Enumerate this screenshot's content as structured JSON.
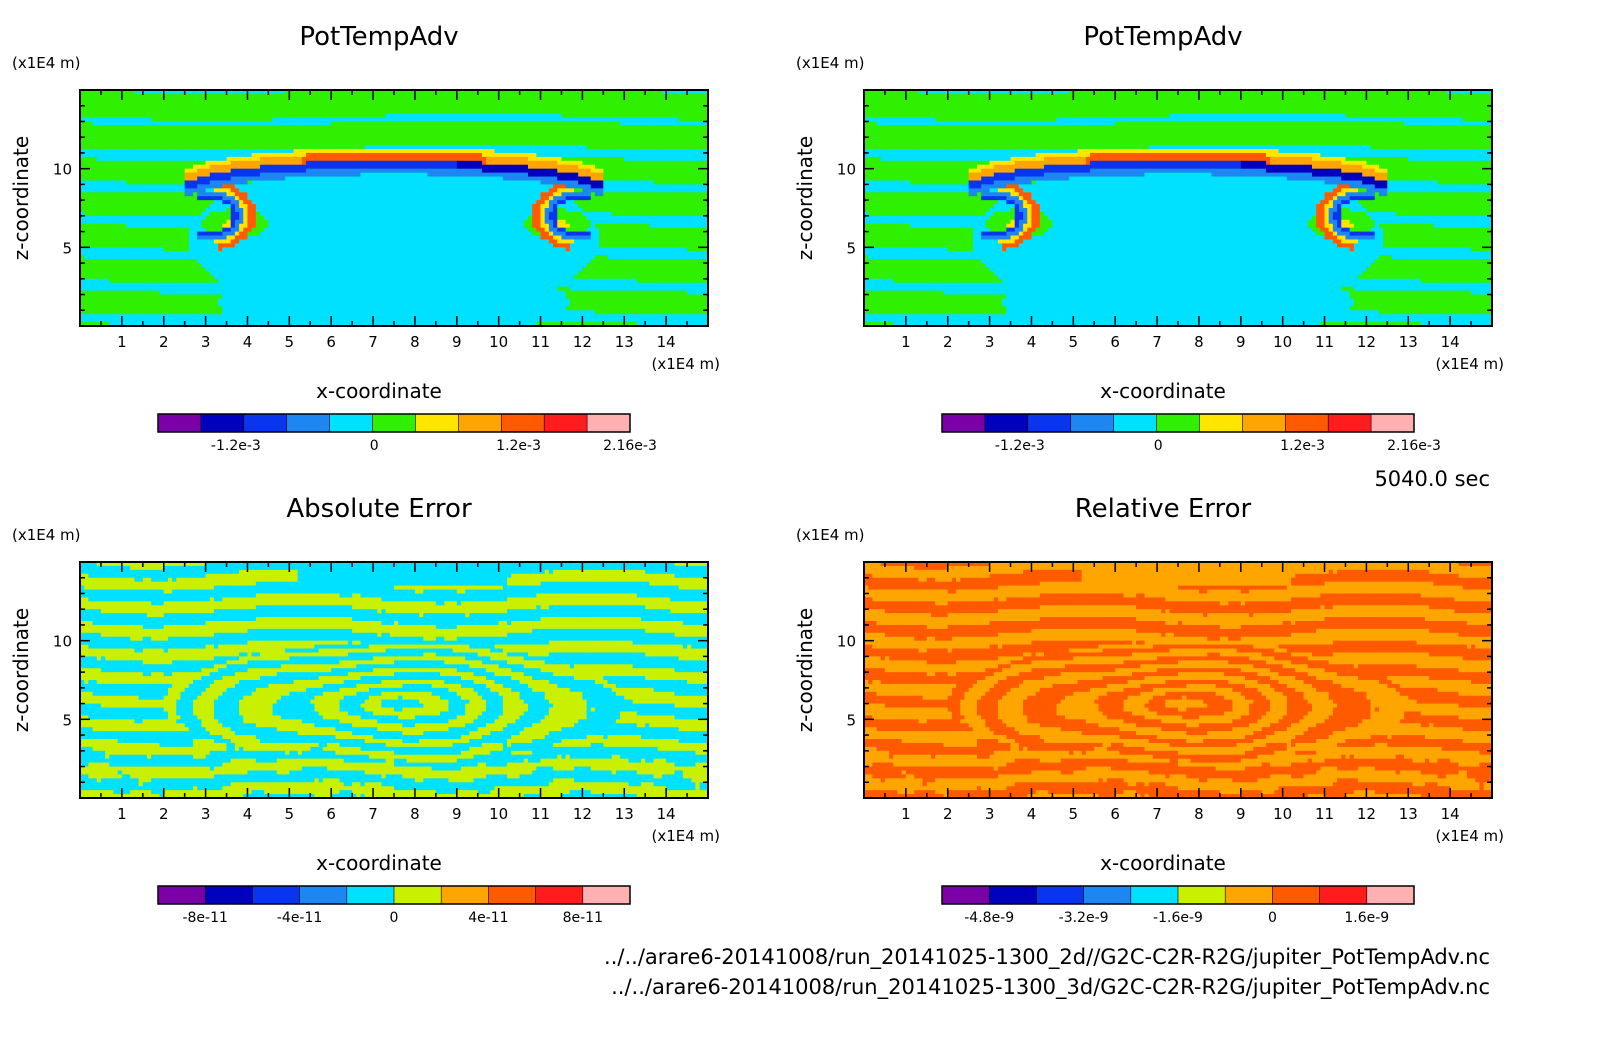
{
  "colors": {
    "purple": "#7a00a8",
    "navy": "#0000c0",
    "blue": "#0a35f0",
    "mid_blue": "#1c86f2",
    "cyan": "#00e1ff",
    "green": "#2ef000",
    "lime": "#c8f000",
    "yellow": "#ffe500",
    "orange": "#ffa500",
    "orange_red": "#ff5a00",
    "red": "#ff1c1c",
    "pink": "#ffb0b0"
  },
  "time_label": "5040.0 sec",
  "file_labels": [
    "../../arare6-20141008/run_20141025-1300_2d//G2C-C2R-R2G/jupiter_PotTempAdv.nc",
    "../../arare6-20141008/run_20141025-1300_3d/G2C-C2R-R2G/jupiter_PotTempAdv.nc"
  ],
  "chart_data": [
    {
      "type": "heatmap",
      "id": "p1",
      "title": "PotTempAdv",
      "xlabel": "x-coordinate",
      "ylabel": "z-coordinate",
      "x_unit": "(x1E4 m)",
      "y_unit": "(x1E4 m)",
      "xlim": [
        0.0,
        15.0
      ],
      "ylim": [
        0.0,
        15.0
      ],
      "x_ticks": [
        "1",
        "2",
        "3",
        "4",
        "5",
        "6",
        "7",
        "8",
        "9",
        "10",
        "11",
        "12",
        "13",
        "14"
      ],
      "y_ticks": [
        "5",
        "10"
      ],
      "colorbar": {
        "colors": [
          "#7a00a8",
          "#0000c0",
          "#0a35f0",
          "#1c86f2",
          "#00e1ff",
          "#2ef000",
          "#ffe500",
          "#ffa500",
          "#ff5a00",
          "#ff1c1c",
          "#ffb0b0"
        ],
        "tick_labels": [
          "-1.2e-3",
          "0",
          "1.2e-3",
          "2.16e-3"
        ],
        "tick_pos": [
          0.165,
          0.458,
          0.764,
          1.0
        ]
      },
      "field": "pottemp"
    },
    {
      "type": "heatmap",
      "id": "p2",
      "title": "PotTempAdv",
      "xlabel": "x-coordinate",
      "ylabel": "z-coordinate",
      "x_unit": "(x1E4 m)",
      "y_unit": "(x1E4 m)",
      "xlim": [
        0.0,
        15.0
      ],
      "ylim": [
        0.0,
        15.0
      ],
      "x_ticks": [
        "1",
        "2",
        "3",
        "4",
        "5",
        "6",
        "7",
        "8",
        "9",
        "10",
        "11",
        "12",
        "13",
        "14"
      ],
      "y_ticks": [
        "5",
        "10"
      ],
      "colorbar": {
        "colors": [
          "#7a00a8",
          "#0000c0",
          "#0a35f0",
          "#1c86f2",
          "#00e1ff",
          "#2ef000",
          "#ffe500",
          "#ffa500",
          "#ff5a00",
          "#ff1c1c",
          "#ffb0b0"
        ],
        "tick_labels": [
          "-1.2e-3",
          "0",
          "1.2e-3",
          "2.16e-3"
        ],
        "tick_pos": [
          0.165,
          0.458,
          0.764,
          1.0
        ]
      },
      "field": "pottemp"
    },
    {
      "type": "heatmap",
      "id": "p3",
      "title": "Absolute Error",
      "xlabel": "x-coordinate",
      "ylabel": "z-coordinate",
      "x_unit": "(x1E4 m)",
      "y_unit": "(x1E4 m)",
      "xlim": [
        0.0,
        15.0
      ],
      "ylim": [
        0.0,
        15.0
      ],
      "x_ticks": [
        "1",
        "2",
        "3",
        "4",
        "5",
        "6",
        "7",
        "8",
        "9",
        "10",
        "11",
        "12",
        "13",
        "14"
      ],
      "y_ticks": [
        "5",
        "10"
      ],
      "colorbar": {
        "colors": [
          "#7a00a8",
          "#0000c0",
          "#0a35f0",
          "#1c86f2",
          "#00e1ff",
          "#c8f000",
          "#ffa500",
          "#ff5a00",
          "#ff1c1c",
          "#ffb0b0"
        ],
        "tick_labels": [
          "-8e-11",
          "-4e-11",
          "0",
          "4e-11",
          "8e-11"
        ],
        "tick_pos": [
          0.1,
          0.3,
          0.5,
          0.7,
          0.9
        ]
      },
      "field": "abs"
    },
    {
      "type": "heatmap",
      "id": "p4",
      "title": "Relative Error",
      "xlabel": "x-coordinate",
      "ylabel": "z-coordinate",
      "x_unit": "(x1E4 m)",
      "y_unit": "(x1E4 m)",
      "xlim": [
        0.0,
        15.0
      ],
      "ylim": [
        0.0,
        15.0
      ],
      "x_ticks": [
        "1",
        "2",
        "3",
        "4",
        "5",
        "6",
        "7",
        "8",
        "9",
        "10",
        "11",
        "12",
        "13",
        "14"
      ],
      "y_ticks": [
        "5",
        "10"
      ],
      "colorbar": {
        "colors": [
          "#7a00a8",
          "#0000c0",
          "#0a35f0",
          "#1c86f2",
          "#00e1ff",
          "#c8f000",
          "#ffa500",
          "#ff5a00",
          "#ff1c1c",
          "#ffb0b0"
        ],
        "tick_labels": [
          "-4.8e-9",
          "-3.2e-9",
          "-1.6e-9",
          "0",
          "1.6e-9"
        ],
        "tick_pos": [
          0.1,
          0.3,
          0.5,
          0.7,
          0.9
        ]
      },
      "field": "rel"
    }
  ]
}
